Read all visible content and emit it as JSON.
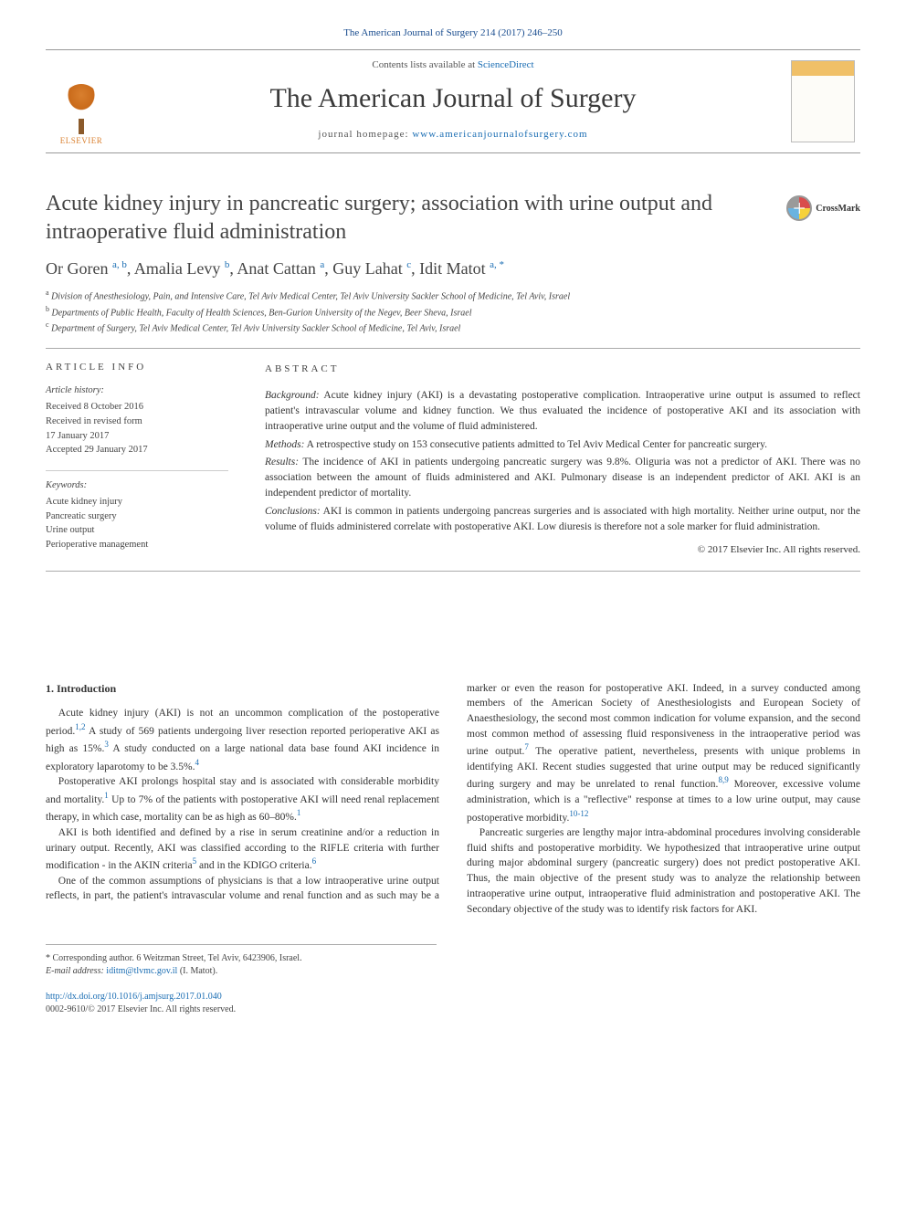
{
  "running_head": "The American Journal of Surgery 214 (2017) 246–250",
  "masthead": {
    "contents_prefix": "Contents lists available at ",
    "contents_link": "ScienceDirect",
    "journal_name": "The American Journal of Surgery",
    "homepage_prefix": "journal homepage: ",
    "homepage_url": "www.americanjournalofsurgery.com",
    "publisher": "ELSEVIER"
  },
  "crossmark_label": "CrossMark",
  "title": "Acute kidney injury in pancreatic surgery; association with urine output and intraoperative fluid administration",
  "authors_html": "Or Goren <sup>a, b</sup>, Amalia Levy <sup>b</sup>, Anat Cattan <sup>a</sup>, Guy Lahat <sup>c</sup>, Idit Matot <sup>a, *</sup>",
  "affiliations": [
    {
      "sup": "a",
      "text": "Division of Anesthesiology, Pain, and Intensive Care, Tel Aviv Medical Center, Tel Aviv University Sackler School of Medicine, Tel Aviv, Israel"
    },
    {
      "sup": "b",
      "text": "Departments of Public Health, Faculty of Health Sciences, Ben-Gurion University of the Negev, Beer Sheva, Israel"
    },
    {
      "sup": "c",
      "text": "Department of Surgery, Tel Aviv Medical Center, Tel Aviv University Sackler School of Medicine, Tel Aviv, Israel"
    }
  ],
  "info": {
    "head": "ARTICLE INFO",
    "history_label": "Article history:",
    "history": [
      "Received 8 October 2016",
      "Received in revised form",
      "17 January 2017",
      "Accepted 29 January 2017"
    ],
    "keywords_label": "Keywords:",
    "keywords": [
      "Acute kidney injury",
      "Pancreatic surgery",
      "Urine output",
      "Perioperative management"
    ]
  },
  "abstract": {
    "head": "ABSTRACT",
    "sections": [
      {
        "label": "Background:",
        "text": "Acute kidney injury (AKI) is a devastating postoperative complication. Intraoperative urine output is assumed to reflect patient's intravascular volume and kidney function. We thus evaluated the incidence of postoperative AKI and its association with intraoperative urine output and the volume of fluid administered."
      },
      {
        "label": "Methods:",
        "text": "A retrospective study on 153 consecutive patients admitted to Tel Aviv Medical Center for pancreatic surgery."
      },
      {
        "label": "Results:",
        "text": "The incidence of AKI in patients undergoing pancreatic surgery was 9.8%. Oliguria was not a predictor of AKI. There was no association between the amount of fluids administered and AKI. Pulmonary disease is an independent predictor of AKI. AKI is an independent predictor of mortality."
      },
      {
        "label": "Conclusions:",
        "text": "AKI is common in patients undergoing pancreas surgeries and is associated with high mortality. Neither urine output, nor the volume of fluids administered correlate with postoperative AKI. Low diuresis is therefore not a sole marker for fluid administration."
      }
    ],
    "copyright": "© 2017 Elsevier Inc. All rights reserved."
  },
  "body": {
    "section_heading": "1. Introduction",
    "paragraphs": [
      "Acute kidney injury (AKI) is not an uncommon complication of the postoperative period.<sup>1,2</sup> A study of 569 patients undergoing liver resection reported perioperative AKI as high as 15%.<sup>3</sup> A study conducted on a large national data base found AKI incidence in exploratory laparotomy to be 3.5%.<sup>4</sup>",
      "Postoperative AKI prolongs hospital stay and is associated with considerable morbidity and mortality.<sup>1</sup> Up to 7% of the patients with postoperative AKI will need renal replacement therapy, in which case, mortality can be as high as 60–80%.<sup>1</sup>",
      "AKI is both identified and defined by a rise in serum creatinine and/or a reduction in urinary output. Recently, AKI was classified according to the RIFLE criteria with further modification - in the AKIN criteria<sup>5</sup> and in the KDIGO criteria.<sup>6</sup>",
      "One of the common assumptions of physicians is that a low intraoperative urine output reflects, in part, the patient's intravascular volume and renal function and as such may be a marker or even the reason for postoperative AKI. Indeed, in a survey conducted among members of the American Society of Anesthesiologists and European Society of Anaesthesiology, the second most common indication for volume expansion, and the second most common method of assessing fluid responsiveness in the intraoperative period was urine output.<sup>7</sup> The operative patient, nevertheless, presents with unique problems in identifying AKI. Recent studies suggested that urine output may be reduced significantly during surgery and may be unrelated to renal function.<sup>8,9</sup> Moreover, excessive volume administration, which is a \"reflective\" response at times to a low urine output, may cause postoperative morbidity.<sup>10-12</sup>",
      "Pancreatic surgeries are lengthy major intra-abdominal procedures involving considerable fluid shifts and postoperative morbidity. We hypothesized that intraoperative urine output during major abdominal surgery (pancreatic surgery) does not predict postoperative AKI. Thus, the main objective of the present study was to analyze the relationship between intraoperative urine output, intraoperative fluid administration and postoperative AKI. The Secondary objective of the study was to identify risk factors for AKI."
    ]
  },
  "footnotes": {
    "corresponding": "* Corresponding author. 6 Weitzman Street, Tel Aviv, 6423906, Israel.",
    "email_label": "E-mail address:",
    "email": "iditm@tlvmc.gov.il",
    "email_name": "(I. Matot)."
  },
  "doi": {
    "url": "http://dx.doi.org/10.1016/j.amjsurg.2017.01.040",
    "issn_line": "0002-9610/© 2017 Elsevier Inc. All rights reserved."
  },
  "colors": {
    "link": "#1a6db3",
    "text": "#333333",
    "rule": "#aaaaaa"
  }
}
